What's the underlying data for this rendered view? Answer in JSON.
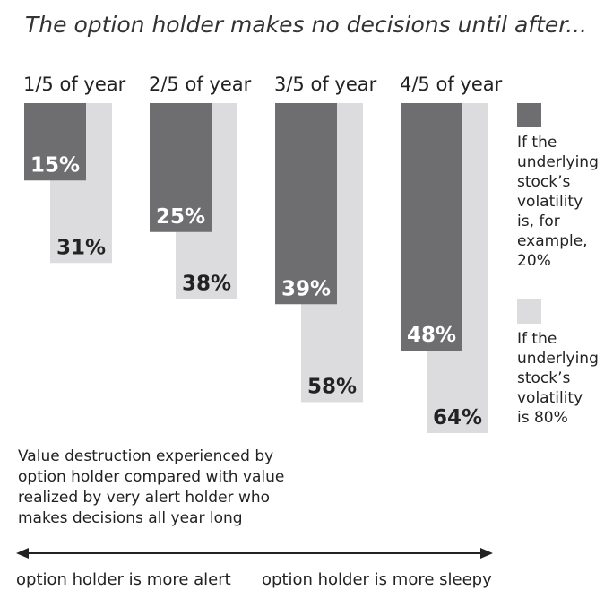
{
  "chart_data": {
    "type": "bar",
    "title": "The option holder makes no decisions until after...",
    "categories": [
      "1/5 of year",
      "2/5 of year",
      "3/5 of year",
      "4/5 of year"
    ],
    "series": [
      {
        "name": "If the underlying stock’s volatility is, for example, 20%",
        "values": [
          15,
          25,
          39,
          48
        ],
        "labels": [
          "15%",
          "25%",
          "39%",
          "48%"
        ],
        "color": "#6e6e70",
        "label_color": "#ffffff"
      },
      {
        "name": "If the underlying stock’s volatility is 80%",
        "values": [
          31,
          38,
          58,
          64
        ],
        "labels": [
          "31%",
          "38%",
          "58%",
          "64%"
        ],
        "color": "#dcdcde",
        "label_color": "#222222"
      }
    ],
    "legend": {
      "placement": "right",
      "items": [
        {
          "lines": [
            "If the",
            "underlying",
            "stock’s",
            "volatility",
            "is, for",
            "example,",
            "20%"
          ]
        },
        {
          "lines": [
            "If the",
            "underlying",
            "stock’s",
            "volatility",
            "is 80%"
          ]
        }
      ]
    },
    "annotation": {
      "lines": [
        "Value destruction experienced by",
        "option holder compared with value",
        "realized by very alert holder who",
        "makes decisions all year long"
      ]
    },
    "axis": {
      "left_label": "option holder is more alert",
      "right_label": "option holder is more sleepy"
    },
    "ylim": [
      0,
      64
    ]
  }
}
